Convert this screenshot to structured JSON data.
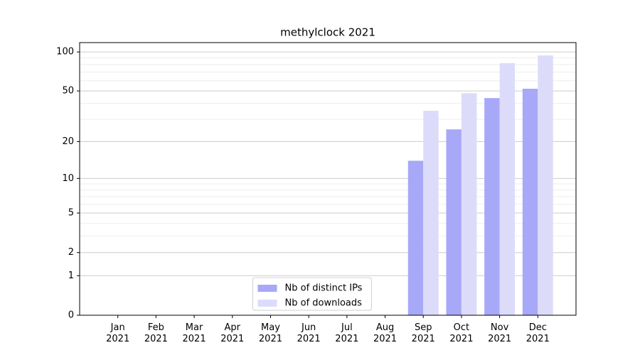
{
  "chart_data": {
    "type": "bar",
    "title": "methylclock 2021",
    "categories": [
      "Jan 2021",
      "Feb 2021",
      "Mar 2021",
      "Apr 2021",
      "May 2021",
      "Jun 2021",
      "Jul 2021",
      "Aug 2021",
      "Sep 2021",
      "Oct 2021",
      "Nov 2021",
      "Dec 2021"
    ],
    "series": [
      {
        "name": "Nb of distinct IPs",
        "color": "#a8a8f8",
        "values": [
          0,
          0,
          0,
          0,
          0,
          0,
          0,
          0,
          14,
          25,
          44,
          52
        ]
      },
      {
        "name": "Nb of downloads",
        "color": "#dcdcfa",
        "values": [
          0,
          0,
          0,
          0,
          0,
          0,
          0,
          0,
          35,
          48,
          82,
          94
        ]
      }
    ],
    "yscale": "log1p",
    "ylim": [
      0,
      118
    ],
    "yticks": [
      0,
      1,
      2,
      5,
      10,
      20,
      50,
      100
    ],
    "yminorticks": [
      3,
      4,
      6,
      7,
      8,
      9,
      30,
      40,
      60,
      70,
      80,
      90
    ],
    "grid": true,
    "legend": "lower center"
  }
}
